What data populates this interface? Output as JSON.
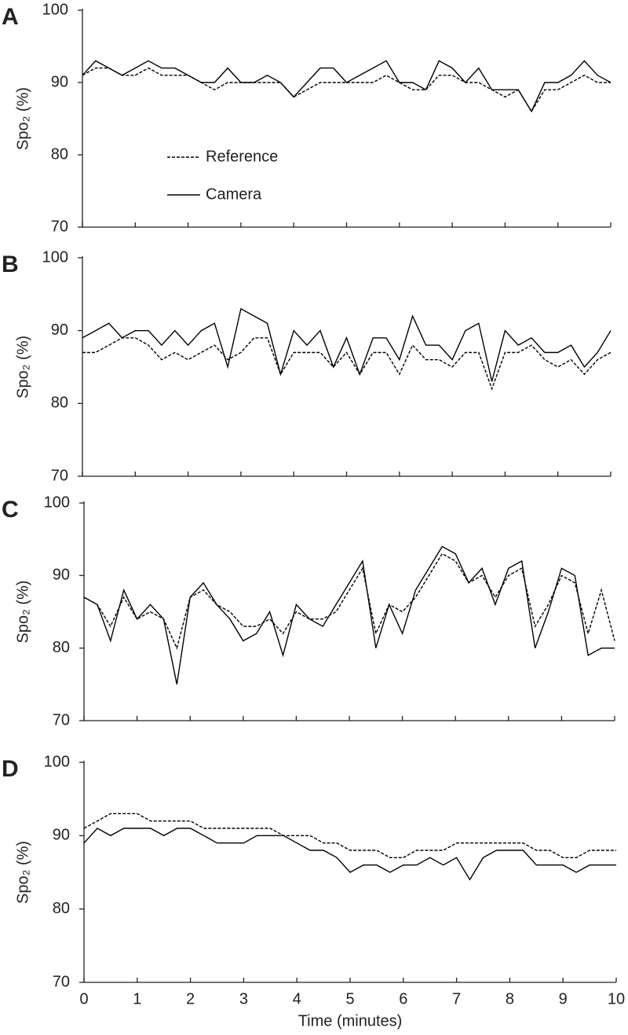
{
  "chart_data": [
    {
      "type": "line",
      "panel_label": "A",
      "ylabel": "Spo₂ (%)",
      "xlim": [
        0,
        10
      ],
      "ylim": [
        70,
        100
      ],
      "xticks": [
        0,
        1,
        2,
        3,
        4,
        5,
        6,
        7,
        8,
        9,
        10
      ],
      "yticks": [
        70,
        80,
        90,
        100
      ],
      "xtick_labels": false,
      "legend": "lower left",
      "x": [
        0,
        0.25,
        0.5,
        0.75,
        1,
        1.25,
        1.5,
        1.75,
        2,
        2.25,
        2.5,
        2.75,
        3,
        3.25,
        3.5,
        3.75,
        4,
        4.25,
        4.5,
        4.75,
        5,
        5.25,
        5.5,
        5.75,
        6,
        6.25,
        6.5,
        6.75,
        7,
        7.25,
        7.5,
        7.75,
        8,
        8.25,
        8.5,
        8.75,
        9,
        9.25,
        9.5,
        9.75,
        10
      ],
      "series": [
        {
          "name": "Reference",
          "color": "#000000",
          "linestyle": "dashed",
          "values": [
            91,
            92,
            92,
            91,
            91,
            92,
            91,
            91,
            91,
            90,
            89,
            90,
            90,
            90,
            90,
            90,
            88,
            89,
            90,
            90,
            90,
            90,
            90,
            91,
            90,
            89,
            89,
            91,
            91,
            90,
            90,
            89,
            88,
            89,
            86,
            89,
            89,
            90,
            91,
            90,
            90
          ]
        },
        {
          "name": "Camera",
          "color": "#000000",
          "linestyle": "solid",
          "values": [
            91,
            93,
            92,
            91,
            92,
            93,
            92,
            92,
            91,
            90,
            90,
            92,
            90,
            90,
            91,
            90,
            88,
            90,
            92,
            92,
            90,
            91,
            92,
            93,
            90,
            90,
            89,
            93,
            92,
            90,
            92,
            89,
            89,
            89,
            86,
            90,
            90,
            91,
            93,
            91,
            90
          ]
        }
      ]
    },
    {
      "type": "line",
      "panel_label": "B",
      "ylabel": "Spo₂ (%)",
      "xlim": [
        0,
        10
      ],
      "ylim": [
        70,
        100
      ],
      "xticks": [
        0,
        1,
        2,
        3,
        4,
        5,
        6,
        7,
        8,
        9,
        10
      ],
      "yticks": [
        70,
        80,
        90,
        100
      ],
      "xtick_labels": false,
      "x": [
        0,
        0.25,
        0.5,
        0.75,
        1,
        1.25,
        1.5,
        1.75,
        2,
        2.25,
        2.5,
        2.75,
        3,
        3.25,
        3.5,
        3.75,
        4,
        4.25,
        4.5,
        4.75,
        5,
        5.25,
        5.5,
        5.75,
        6,
        6.25,
        6.5,
        6.75,
        7,
        7.25,
        7.5,
        7.75,
        8,
        8.25,
        8.5,
        8.75,
        9,
        9.25,
        9.5,
        9.75,
        10
      ],
      "series": [
        {
          "color": "#000000",
          "linestyle": "dashed",
          "values": [
            87,
            87,
            88,
            89,
            89,
            88,
            86,
            87,
            86,
            87,
            88,
            86,
            87,
            89,
            89,
            84,
            87,
            87,
            87,
            85,
            87,
            84,
            87,
            87,
            84,
            88,
            86,
            86,
            85,
            87,
            87,
            82,
            87,
            87,
            88,
            86,
            85,
            86,
            84,
            86,
            87
          ]
        },
        {
          "color": "#000000",
          "linestyle": "solid",
          "values": [
            89,
            90,
            91,
            89,
            90,
            90,
            88,
            90,
            88,
            90,
            91,
            85,
            93,
            92,
            91,
            84,
            90,
            88,
            90,
            85,
            89,
            84,
            89,
            89,
            86,
            92,
            88,
            88,
            86,
            90,
            91,
            83,
            90,
            88,
            89,
            87,
            87,
            88,
            85,
            87,
            90
          ]
        }
      ]
    },
    {
      "type": "line",
      "panel_label": "C",
      "ylabel": "Spo₂ (%)",
      "xlim": [
        0,
        10
      ],
      "ylim": [
        70,
        100
      ],
      "xticks": [
        0,
        1,
        2,
        3,
        4,
        5,
        6,
        7,
        8,
        9,
        10
      ],
      "yticks": [
        70,
        80,
        90,
        100
      ],
      "xtick_labels": false,
      "x": [
        0,
        0.25,
        0.5,
        0.75,
        1,
        1.25,
        1.5,
        1.75,
        2,
        2.25,
        2.5,
        2.75,
        3,
        3.25,
        3.5,
        3.75,
        4,
        4.25,
        4.5,
        4.75,
        5,
        5.25,
        5.5,
        5.75,
        6,
        6.25,
        6.5,
        6.75,
        7,
        7.25,
        7.5,
        7.75,
        8,
        8.25,
        8.5,
        8.75,
        9,
        9.25,
        9.5,
        9.75,
        10
      ],
      "series": [
        {
          "color": "#000000",
          "linestyle": "dashed",
          "values": [
            87,
            86,
            83,
            87,
            84,
            85,
            84,
            80,
            87,
            88,
            86,
            85,
            83,
            83,
            84,
            82,
            85,
            84,
            84,
            85,
            88,
            91,
            82,
            86,
            85,
            87,
            90,
            93,
            92,
            89,
            90,
            87,
            90,
            91,
            83,
            86,
            90,
            89,
            82,
            88,
            81
          ]
        },
        {
          "color": "#000000",
          "linestyle": "solid",
          "values": [
            87,
            86,
            81,
            88,
            84,
            86,
            84,
            75,
            87,
            89,
            86,
            84,
            81,
            82,
            85,
            79,
            86,
            84,
            83,
            86,
            89,
            92,
            80,
            86,
            82,
            88,
            91,
            94,
            93,
            89,
            91,
            86,
            91,
            92,
            80,
            85,
            91,
            90,
            79,
            80,
            80
          ]
        }
      ]
    },
    {
      "type": "line",
      "panel_label": "D",
      "ylabel": "Spo₂ (%)",
      "xlabel": "Time (minutes)",
      "xlim": [
        0,
        10
      ],
      "ylim": [
        70,
        100
      ],
      "xticks": [
        0,
        1,
        2,
        3,
        4,
        5,
        6,
        7,
        8,
        9,
        10
      ],
      "yticks": [
        70,
        80,
        90,
        100
      ],
      "xtick_labels": true,
      "x": [
        0,
        0.25,
        0.5,
        0.75,
        1,
        1.25,
        1.5,
        1.75,
        2,
        2.25,
        2.5,
        2.75,
        3,
        3.25,
        3.5,
        3.75,
        4,
        4.25,
        4.5,
        4.75,
        5,
        5.25,
        5.5,
        5.75,
        6,
        6.25,
        6.5,
        6.75,
        7,
        7.25,
        7.5,
        7.75,
        8,
        8.25,
        8.5,
        8.75,
        9,
        9.25,
        9.5,
        9.75,
        10
      ],
      "series": [
        {
          "color": "#000000",
          "linestyle": "dashed",
          "values": [
            91,
            92,
            93,
            93,
            93,
            92,
            92,
            92,
            92,
            91,
            91,
            91,
            91,
            91,
            91,
            90,
            90,
            90,
            89,
            89,
            88,
            88,
            88,
            87,
            87,
            88,
            88,
            88,
            89,
            89,
            89,
            89,
            89,
            89,
            88,
            88,
            87,
            87,
            88,
            88,
            88
          ]
        },
        {
          "color": "#000000",
          "linestyle": "solid",
          "values": [
            89,
            91,
            90,
            91,
            91,
            91,
            90,
            91,
            91,
            90,
            89,
            89,
            89,
            90,
            90,
            90,
            89,
            88,
            88,
            87,
            85,
            86,
            86,
            85,
            86,
            86,
            87,
            86,
            87,
            84,
            87,
            88,
            88,
            88,
            86,
            86,
            86,
            85,
            86,
            86,
            86
          ]
        }
      ]
    }
  ]
}
